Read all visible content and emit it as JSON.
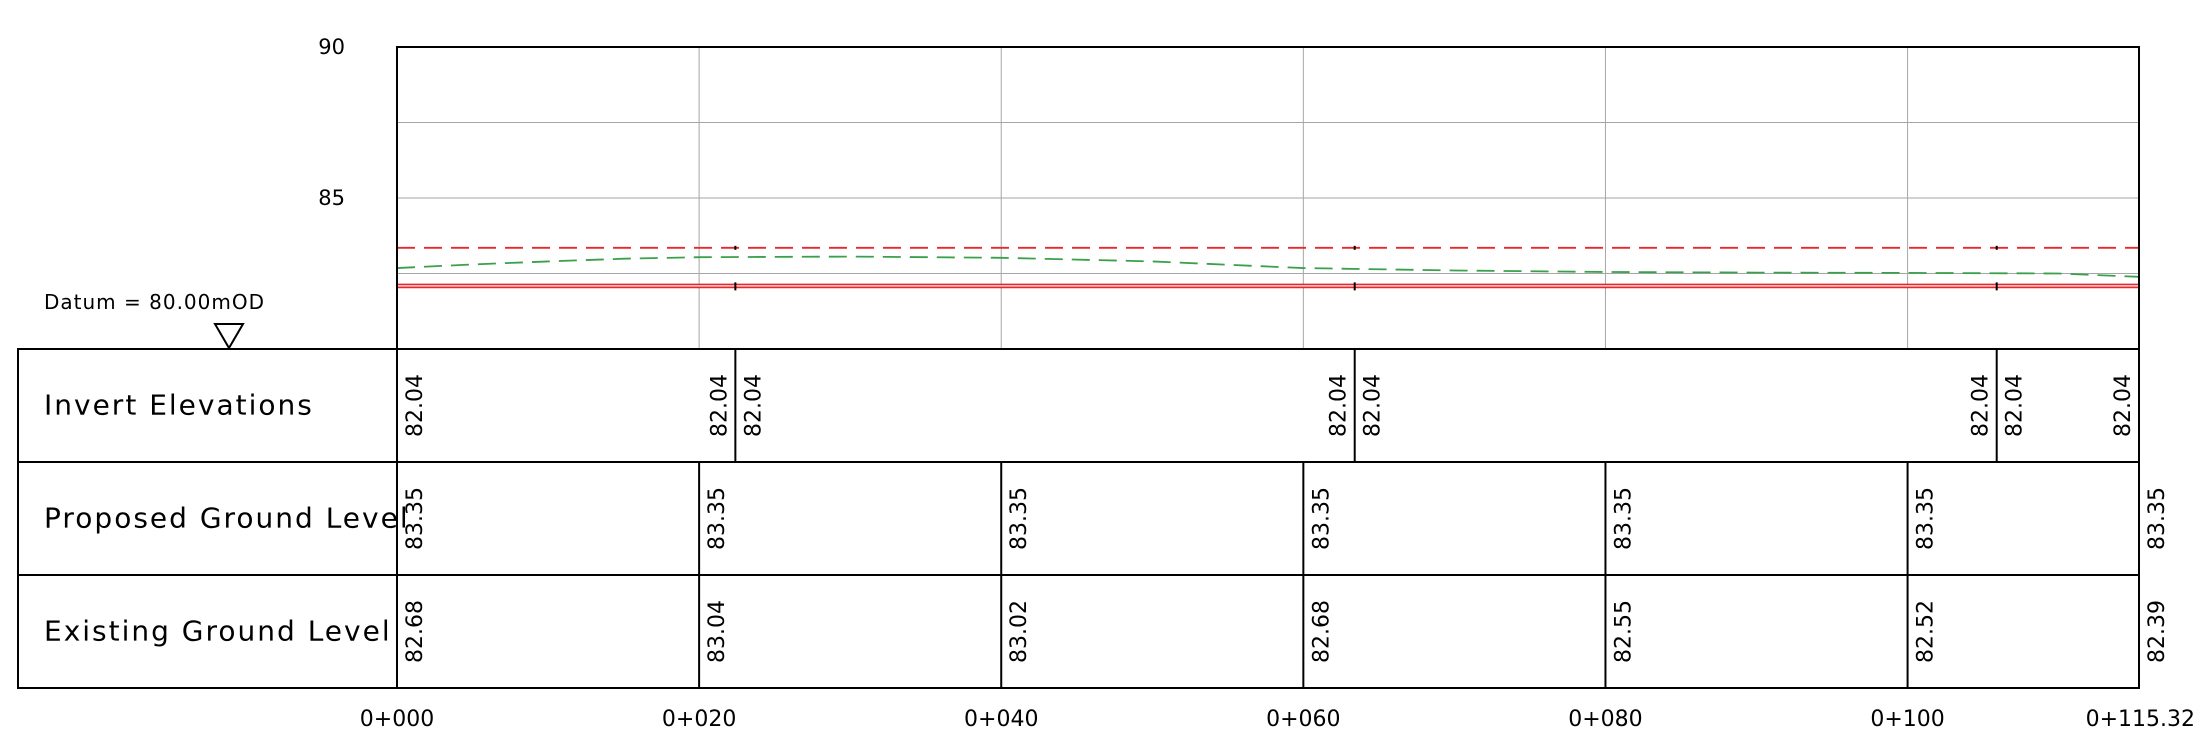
{
  "elevation_axis": {
    "min": 80,
    "max": 90,
    "tick_labels": [
      {
        "value": 90,
        "label": "90"
      },
      {
        "value": 85,
        "label": "85"
      }
    ],
    "gridlines": [
      82.5,
      85,
      87.5
    ]
  },
  "chainage_axis": {
    "min": 0,
    "max": 115.32,
    "gridlines": [
      20,
      40,
      60,
      80,
      100
    ],
    "labels": [
      {
        "ch": 0,
        "label": "0+000"
      },
      {
        "ch": 20,
        "label": "0+020"
      },
      {
        "ch": 40,
        "label": "0+040"
      },
      {
        "ch": 60,
        "label": "0+060"
      },
      {
        "ch": 80,
        "label": "0+080"
      },
      {
        "ch": 100,
        "label": "0+100"
      },
      {
        "ch": 115.32,
        "label": "0+115.32"
      }
    ]
  },
  "datum": {
    "label": "Datum = 80.00mOD"
  },
  "colors": {
    "proposed_line": "#e8262b",
    "existing_line": "#3aa04b",
    "pipe": "#e8262b",
    "grid": "#a6a6a6",
    "frame": "#000000"
  },
  "profile_lines": {
    "proposed_ground": [
      {
        "ch": 0,
        "level": 83.35
      },
      {
        "ch": 115.32,
        "level": 83.35
      }
    ],
    "existing_ground": [
      {
        "ch": 0,
        "level": 82.68
      },
      {
        "ch": 5,
        "level": 82.8
      },
      {
        "ch": 10,
        "level": 82.9
      },
      {
        "ch": 15,
        "level": 82.99
      },
      {
        "ch": 20,
        "level": 83.04
      },
      {
        "ch": 30,
        "level": 83.06
      },
      {
        "ch": 40,
        "level": 83.02
      },
      {
        "ch": 50,
        "level": 82.9
      },
      {
        "ch": 60,
        "level": 82.68
      },
      {
        "ch": 70,
        "level": 82.6
      },
      {
        "ch": 80,
        "level": 82.55
      },
      {
        "ch": 90,
        "level": 82.53
      },
      {
        "ch": 100,
        "level": 82.52
      },
      {
        "ch": 110,
        "level": 82.5
      },
      {
        "ch": 115.32,
        "level": 82.39
      }
    ],
    "pipe_invert": 82.04,
    "pipe_soffit": 82.14,
    "manholes": [
      22.4,
      63.4,
      105.9
    ]
  },
  "bands": [
    {
      "key": "invert",
      "label": "Invert Elevations",
      "dividers": [
        22.4,
        63.4,
        105.9
      ],
      "values": [
        {
          "ch": 0,
          "side": "right",
          "text": "82.04"
        },
        {
          "ch": 22.4,
          "side": "left",
          "text": "82.04"
        },
        {
          "ch": 22.4,
          "side": "right",
          "text": "82.04"
        },
        {
          "ch": 63.4,
          "side": "left",
          "text": "82.04"
        },
        {
          "ch": 63.4,
          "side": "right",
          "text": "82.04"
        },
        {
          "ch": 105.9,
          "side": "left",
          "text": "82.04"
        },
        {
          "ch": 105.9,
          "side": "right",
          "text": "82.04"
        },
        {
          "ch": 115.32,
          "side": "left",
          "text": "82.04"
        }
      ]
    },
    {
      "key": "proposed",
      "label": "Proposed Ground Level",
      "dividers": [
        20,
        40,
        60,
        80,
        100
      ],
      "values": [
        {
          "ch": 0,
          "side": "right",
          "text": "83.35"
        },
        {
          "ch": 20,
          "side": "right",
          "text": "83.35"
        },
        {
          "ch": 40,
          "side": "right",
          "text": "83.35"
        },
        {
          "ch": 60,
          "side": "right",
          "text": "83.35"
        },
        {
          "ch": 80,
          "side": "right",
          "text": "83.35"
        },
        {
          "ch": 100,
          "side": "right",
          "text": "83.35"
        },
        {
          "ch": 115.32,
          "side": "right",
          "text": "83.35"
        }
      ]
    },
    {
      "key": "existing",
      "label": "Existing Ground Level",
      "dividers": [
        20,
        40,
        60,
        80,
        100
      ],
      "values": [
        {
          "ch": 0,
          "side": "right",
          "text": "82.68"
        },
        {
          "ch": 20,
          "side": "right",
          "text": "83.04"
        },
        {
          "ch": 40,
          "side": "right",
          "text": "83.02"
        },
        {
          "ch": 60,
          "side": "right",
          "text": "82.68"
        },
        {
          "ch": 80,
          "side": "right",
          "text": "82.55"
        },
        {
          "ch": 100,
          "side": "right",
          "text": "82.52"
        },
        {
          "ch": 115.32,
          "side": "right",
          "text": "82.39"
        }
      ]
    }
  ]
}
